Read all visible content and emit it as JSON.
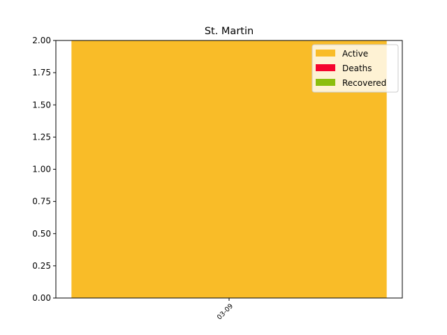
{
  "chart_data": {
    "type": "bar",
    "stacked": true,
    "title": "St. Martin",
    "xlabel": "",
    "ylabel": "",
    "categories": [
      "03-09"
    ],
    "series": [
      {
        "name": "Active",
        "values": [
          2
        ],
        "color": "#f9bc28"
      },
      {
        "name": "Deaths",
        "values": [
          0
        ],
        "color": "#f5052f"
      },
      {
        "name": "Recovered",
        "values": [
          0
        ],
        "color": "#8bbe0f"
      }
    ],
    "ylim": [
      0,
      2
    ],
    "yticks": [
      "0.00",
      "0.25",
      "0.50",
      "0.75",
      "1.00",
      "1.25",
      "1.50",
      "1.75",
      "2.00"
    ],
    "grid": false,
    "legend_position": "top-right"
  }
}
